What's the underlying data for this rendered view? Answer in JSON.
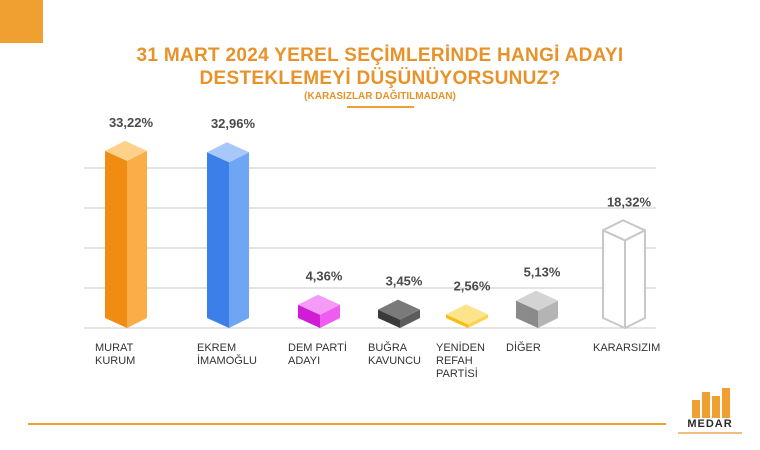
{
  "title_line1": "31 MART 2024 YEREL SEÇİMLERİNDE HANGİ ADAYI",
  "title_line2": "DESTEKLEMEYİ DÜŞÜNÜYORSUNUZ?",
  "subtitle": "(KARASIZLAR DAĞITILMADAN)",
  "logo_text": "MEDAR",
  "colors": {
    "accent": "#F0A030",
    "title": "#E8922A",
    "grid": "#C8C8C8"
  },
  "chart_data": {
    "type": "bar",
    "categories": [
      "MURAT KURUM",
      "EKREM İMAMOĞLU",
      "DEM PARTİ ADAYI",
      "BUĞRA KAVUNCU",
      "YENİDEN REFAH PARTİSİ",
      "DİĞER",
      "KARARSIZIM"
    ],
    "label_lines": [
      [
        "MURAT",
        "KURUM"
      ],
      [
        "EKREM",
        "İMAMOĞLU"
      ],
      [
        "DEM PARTİ",
        "ADAYI"
      ],
      [
        "BUĞRA",
        "KAVUNCU"
      ],
      [
        "YENİDEN",
        "REFAH",
        "PARTİSİ"
      ],
      [
        "DİĞER"
      ],
      [
        "KARARSIZIM"
      ]
    ],
    "values": [
      33.22,
      32.96,
      4.36,
      3.45,
      2.56,
      5.13,
      18.32
    ],
    "value_labels": [
      "33,22%",
      "32,96%",
      "4,36%",
      "3,45%",
      "2,56%",
      "5,13%",
      "18,32%"
    ],
    "bar_colors": [
      {
        "front": "#F08C12",
        "side": "#FBAE48",
        "top": "#FFD08A"
      },
      {
        "front": "#3C7FE8",
        "side": "#6FA5F5",
        "top": "#A8C8FA"
      },
      {
        "front": "#D11CD6",
        "side": "#EE5CF0",
        "top": "#F59AF6"
      },
      {
        "front": "#3A3A3A",
        "side": "#5C5C5C",
        "top": "#7A7A7A"
      },
      {
        "front": "#F5BE10",
        "side": "#FBD24A",
        "top": "#FDE38A"
      },
      {
        "front": "#8A8A8A",
        "side": "#B4B4B4",
        "top": "#D4D4D4"
      },
      {
        "front": "#FFFFFF",
        "side": "#FFFFFF",
        "top": "#FFFFFF",
        "outline": "#C8C8C8"
      }
    ],
    "ylim": [
      0,
      36
    ],
    "grid": true,
    "xlabel": "",
    "ylabel": ""
  }
}
